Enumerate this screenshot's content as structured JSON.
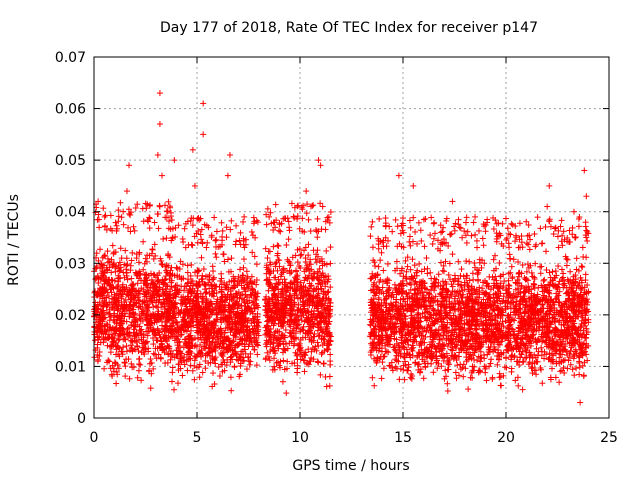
{
  "chart_data": {
    "type": "scatter",
    "title": "Day 177 of 2018, Rate Of TEC Index for receiver p147",
    "xlabel": "GPS time / hours",
    "ylabel": "ROTI / TECUs",
    "xlim": [
      0,
      25
    ],
    "ylim": [
      0,
      0.07
    ],
    "xticks": [
      0,
      5,
      10,
      15,
      20,
      25
    ],
    "xtick_labels": [
      "0",
      "5",
      "10",
      "15",
      "20",
      "25"
    ],
    "yticks": [
      0,
      0.01,
      0.02,
      0.03,
      0.04,
      0.05,
      0.06,
      0.07
    ],
    "ytick_labels": [
      "0",
      "0.01",
      "0.02",
      "0.03",
      "0.04",
      "0.05",
      "0.06",
      "0.07"
    ],
    "grid": true,
    "marker": "+",
    "color": "#ff0000",
    "series": [
      {
        "name": "ROTI p147",
        "segments": [
          {
            "x_range": [
              0.0,
              3.8
            ],
            "band": [
              0.004,
              0.036
            ]
          },
          {
            "x_range": [
              3.8,
              8.0
            ],
            "band": [
              0.004,
              0.033
            ]
          },
          {
            "x_range": [
              8.3,
              11.5
            ],
            "band": [
              0.004,
              0.036
            ]
          },
          {
            "x_range": [
              13.4,
              24.0
            ],
            "band": [
              0.004,
              0.033
            ]
          }
        ],
        "gap": [
          11.5,
          13.4
        ],
        "outliers": [
          {
            "x": 0.2,
            "y": 0.042
          },
          {
            "x": 1.7,
            "y": 0.049
          },
          {
            "x": 1.6,
            "y": 0.044
          },
          {
            "x": 3.2,
            "y": 0.063
          },
          {
            "x": 3.2,
            "y": 0.057
          },
          {
            "x": 3.1,
            "y": 0.051
          },
          {
            "x": 3.3,
            "y": 0.047
          },
          {
            "x": 3.9,
            "y": 0.05
          },
          {
            "x": 4.8,
            "y": 0.052
          },
          {
            "x": 5.3,
            "y": 0.061
          },
          {
            "x": 5.3,
            "y": 0.055
          },
          {
            "x": 4.9,
            "y": 0.045
          },
          {
            "x": 6.6,
            "y": 0.051
          },
          {
            "x": 6.5,
            "y": 0.047
          },
          {
            "x": 8.5,
            "y": 0.039
          },
          {
            "x": 10.3,
            "y": 0.044
          },
          {
            "x": 10.9,
            "y": 0.05
          },
          {
            "x": 11.0,
            "y": 0.049
          },
          {
            "x": 14.8,
            "y": 0.047
          },
          {
            "x": 15.5,
            "y": 0.045
          },
          {
            "x": 17.4,
            "y": 0.042
          },
          {
            "x": 22.1,
            "y": 0.045
          },
          {
            "x": 22.0,
            "y": 0.041
          },
          {
            "x": 23.8,
            "y": 0.048
          },
          {
            "x": 23.9,
            "y": 0.043
          },
          {
            "x": 23.3,
            "y": 0.04
          },
          {
            "x": 23.6,
            "y": 0.003
          }
        ]
      }
    ]
  }
}
